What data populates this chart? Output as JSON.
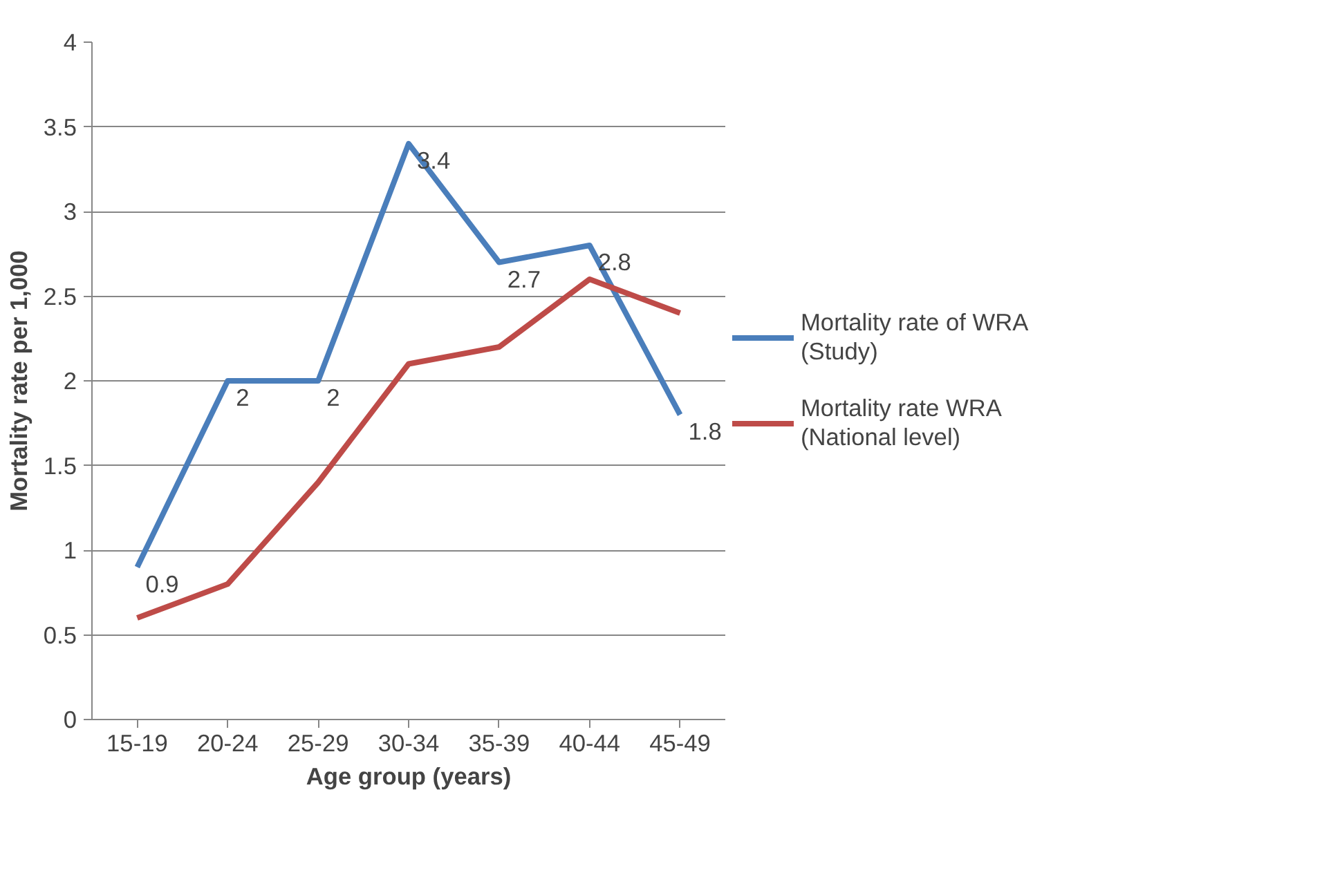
{
  "chart_data": {
    "type": "line",
    "xlabel": "Age group (years)",
    "ylabel": "Mortality rate per 1,000",
    "categories": [
      "15-19",
      "20-24",
      "25-29",
      "30-34",
      "35-39",
      "40-44",
      "45-49"
    ],
    "ylim": [
      0,
      4
    ],
    "yticks": [
      0,
      0.5,
      1,
      1.5,
      2,
      2.5,
      3,
      3.5,
      4
    ],
    "grid": "y",
    "legend": "right",
    "marker": "none",
    "line_style": "solid",
    "series": [
      {
        "name": "Mortality rate of WRA (Study)",
        "color": "#4a7ebb",
        "values": [
          0.9,
          2,
          2,
          3.4,
          2.7,
          2.8,
          1.8
        ],
        "value_labels": [
          "0.9",
          "2",
          "2",
          "3.4",
          "2.7",
          "2.8",
          "1.8"
        ]
      },
      {
        "name": "Mortality rate WRA (National level)",
        "color": "#be4b48",
        "values": [
          0.6,
          0.8,
          1.4,
          2.1,
          2.2,
          2.6,
          2.4
        ]
      }
    ]
  }
}
